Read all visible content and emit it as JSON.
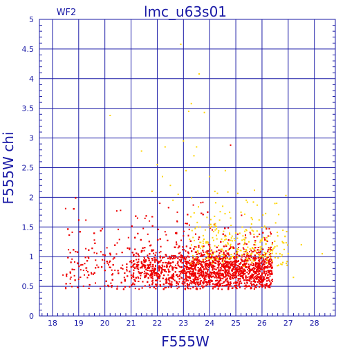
{
  "chart_data": {
    "type": "scatter",
    "title": "lmc_u63s01",
    "corner_label": "WF2",
    "xlabel": "F555W",
    "ylabel": "F555W chi",
    "xlim": [
      17.5,
      28.8
    ],
    "ylim": [
      0,
      5
    ],
    "x_ticks": [
      "18",
      "19",
      "20",
      "21",
      "22",
      "23",
      "24",
      "25",
      "26",
      "27",
      "28"
    ],
    "y_ticks": [
      "0",
      "0.5",
      "1",
      "1.5",
      "2",
      "2.5",
      "3",
      "3.5",
      "4",
      "4.5",
      "5"
    ],
    "grid": true,
    "colors": {
      "axes": "#1a1aa6",
      "grid": "#1a1aa6",
      "red_points": "#ee0000",
      "yellow_points": "#ffd400"
    },
    "series": [
      {
        "color": "#ee0000",
        "values": [
          [
            18.5,
            1.81
          ],
          [
            18.4,
            0.69
          ],
          [
            19.0,
            0.62
          ],
          [
            19.3,
            0.81
          ],
          [
            19.6,
            1.28
          ],
          [
            19.9,
            1.47
          ],
          [
            20.1,
            0.89
          ],
          [
            20.3,
            0.71
          ],
          [
            20.6,
            1.78
          ],
          [
            20.9,
            1.32
          ],
          [
            21.2,
            0.95
          ],
          [
            21.4,
            1.1
          ],
          [
            21.7,
            1.6
          ],
          [
            21.9,
            0.72
          ],
          [
            22.1,
            1.9
          ],
          [
            22.3,
            1.42
          ],
          [
            22.6,
            0.66
          ],
          [
            22.8,
            1.15
          ],
          [
            23.0,
            1.35
          ],
          [
            23.3,
            0.58
          ],
          [
            23.6,
            1.05
          ],
          [
            23.8,
            0.62
          ],
          [
            24.1,
            1.45
          ],
          [
            24.4,
            0.55
          ],
          [
            24.8,
            2.88
          ],
          [
            25.1,
            0.72
          ],
          [
            25.4,
            0.6
          ],
          [
            25.7,
            0.98
          ],
          [
            26.0,
            0.66
          ],
          [
            26.3,
            0.58
          ]
        ]
      },
      {
        "color": "#ffd400",
        "values": [
          [
            20.2,
            3.38
          ],
          [
            21.4,
            2.78
          ],
          [
            21.8,
            2.1
          ],
          [
            22.0,
            2.55
          ],
          [
            22.2,
            2.35
          ],
          [
            22.3,
            2.85
          ],
          [
            22.5,
            2.2
          ],
          [
            22.6,
            1.95
          ],
          [
            22.8,
            2.05
          ],
          [
            22.9,
            4.58
          ],
          [
            23.0,
            2.95
          ],
          [
            23.1,
            2.45
          ],
          [
            23.2,
            3.45
          ],
          [
            23.3,
            3.58
          ],
          [
            23.4,
            2.7
          ],
          [
            23.5,
            2.85
          ],
          [
            23.6,
            4.08
          ],
          [
            23.8,
            3.43
          ],
          [
            24.0,
            2.35
          ],
          [
            24.2,
            2.1
          ],
          [
            24.5,
            1.85
          ],
          [
            24.6,
            2.45
          ],
          [
            24.8,
            1.65
          ],
          [
            25.0,
            1.4
          ],
          [
            25.2,
            1.75
          ],
          [
            25.4,
            1.95
          ],
          [
            25.5,
            1.25
          ],
          [
            25.6,
            1.55
          ],
          [
            25.8,
            1.05
          ],
          [
            26.0,
            1.3
          ],
          [
            26.2,
            0.95
          ],
          [
            26.4,
            1.1
          ],
          [
            26.6,
            1.35
          ],
          [
            26.8,
            0.9
          ],
          [
            27.0,
            1.05
          ],
          [
            27.2,
            0.65
          ],
          [
            27.5,
            1.2
          ],
          [
            28.3,
            1.05
          ]
        ]
      }
    ]
  }
}
